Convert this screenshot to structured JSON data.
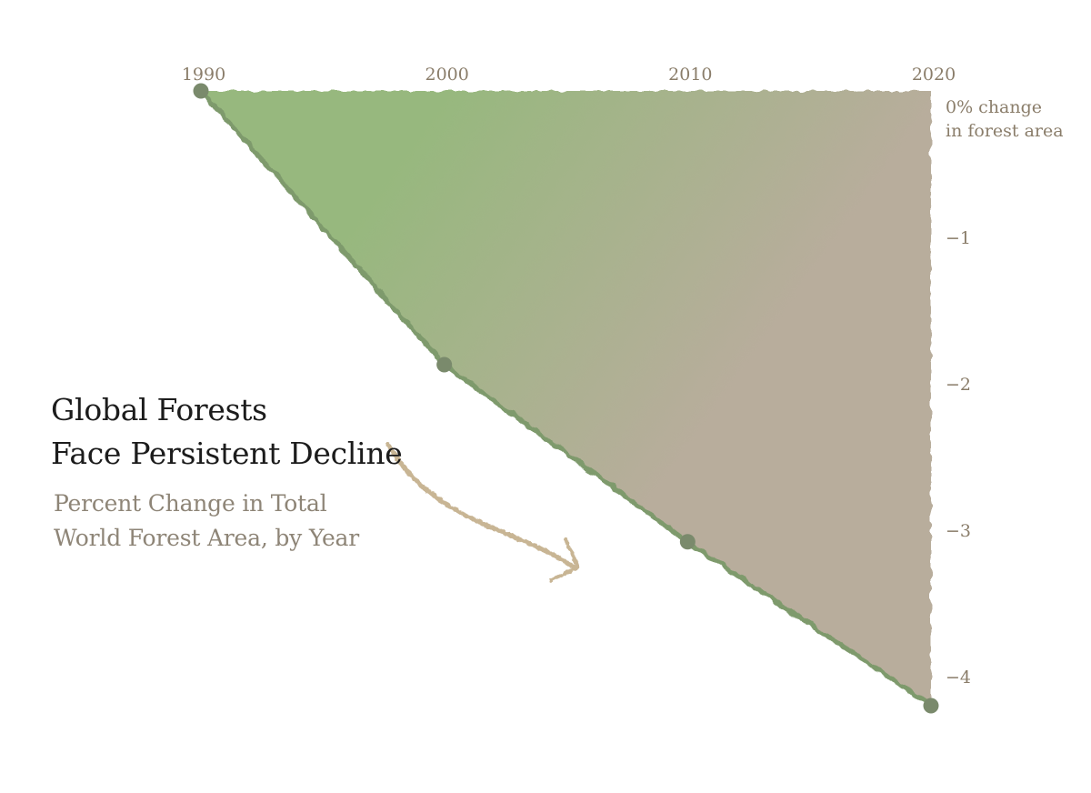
{
  "title": [
    "Global Forests",
    "Face Persistent Decline"
  ],
  "subtitle": [
    "Percent Change in Total",
    "World Forest Area, by Year"
  ],
  "colors": {
    "area_start": "#97b87e",
    "area_end": "#b8ad9c",
    "line": "#7e9a6c",
    "point": "#7a8a6c",
    "arrow": "#c8b594",
    "text": "#8a7d6a"
  },
  "chart_data": {
    "type": "area",
    "title": "Global Forests Face Persistent Decline",
    "subtitle": "Percent Change in Total World Forest Area, by Year",
    "x": [
      1990,
      2000,
      2010,
      2020
    ],
    "y": [
      0,
      -1.87,
      -3.08,
      -4.2
    ],
    "xlim": [
      1990,
      2020
    ],
    "ylim": [
      -4.2,
      0
    ],
    "x_ticks": [
      1990,
      2000,
      2010,
      2020
    ],
    "x_tick_labels": [
      "1990",
      "2000",
      "2010",
      "2020"
    ],
    "x_axis_position": "top",
    "y_ticks": [
      0,
      -1,
      -2,
      -3,
      -4
    ],
    "y_tick_labels": [
      "−1",
      "−2",
      "−3",
      "−4"
    ],
    "y_zero_label": [
      "0% change",
      "in forest area"
    ],
    "y_axis_position": "right",
    "grid": false,
    "legend": "none"
  }
}
